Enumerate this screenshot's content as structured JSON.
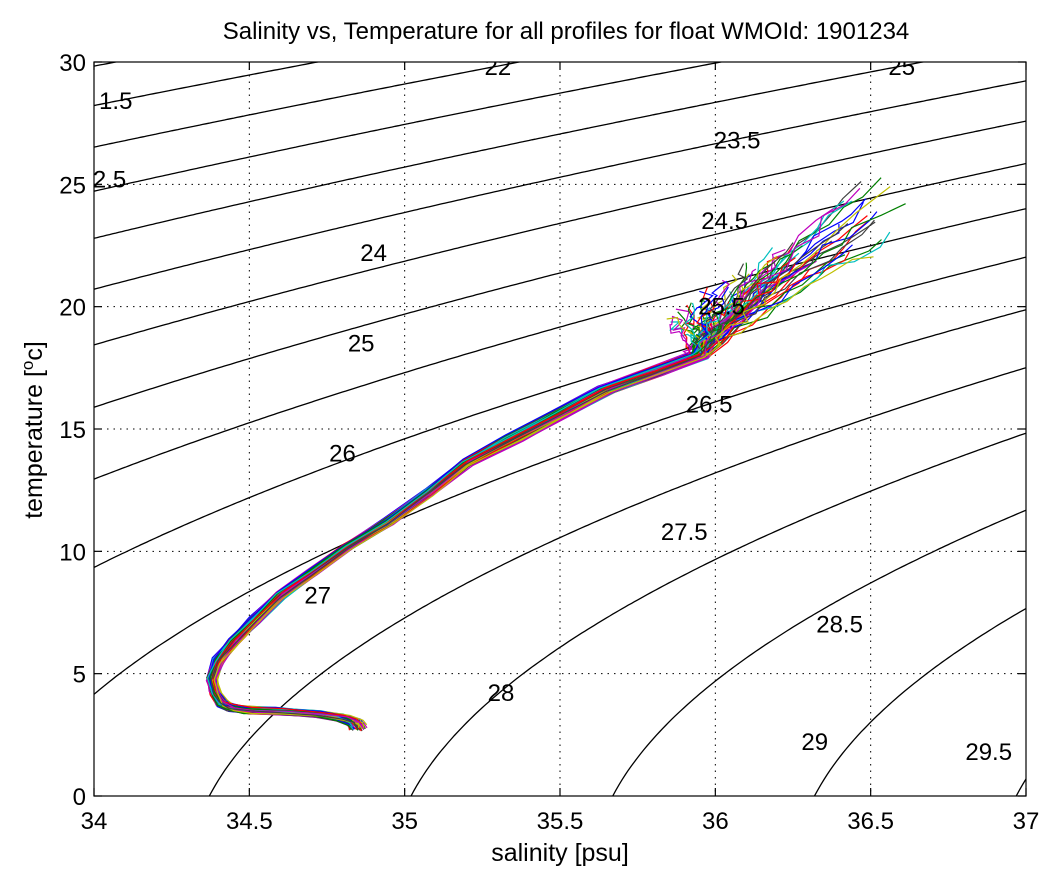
{
  "chart_data": {
    "type": "line",
    "title": "Salinity vs, Temperature for all profiles for float WMOId: 1901234",
    "xlabel": "salinity [psu]",
    "ylabel_parts": {
      "main": "temperature [",
      "sup": "o",
      "end": "c]"
    },
    "xlim": [
      34,
      37
    ],
    "ylim": [
      0,
      30
    ],
    "xticks": [
      34,
      34.5,
      35,
      35.5,
      36,
      36.5,
      37
    ],
    "xtick_labels": [
      "34",
      "34.5",
      "35",
      "35.5",
      "36",
      "36.5",
      "37"
    ],
    "yticks": [
      0,
      5,
      10,
      15,
      20,
      25,
      30
    ],
    "ytick_labels": [
      "0",
      "5",
      "10",
      "15",
      "20",
      "25",
      "30"
    ],
    "grid": true,
    "isopycnal_levels": [
      21.5,
      22,
      22.5,
      23,
      23.5,
      24,
      24.5,
      25,
      25.5,
      26,
      26.5,
      27,
      27.5,
      28,
      28.5,
      29,
      29.5
    ],
    "contour_labels": [
      {
        "text": "1.5",
        "s": 34.07,
        "t": 28.4
      },
      {
        "text": "2.5",
        "s": 34.05,
        "t": 25.2
      },
      {
        "text": "22",
        "s": 35.3,
        "t": 29.8
      },
      {
        "text": "23.5",
        "s": 36.07,
        "t": 26.8
      },
      {
        "text": "25",
        "s": 36.6,
        "t": 29.8
      },
      {
        "text": "24",
        "s": 34.9,
        "t": 22.2
      },
      {
        "text": "24.5",
        "s": 36.03,
        "t": 23.5
      },
      {
        "text": "25",
        "s": 34.86,
        "t": 18.5
      },
      {
        "text": "25.5",
        "s": 36.02,
        "t": 20.0
      },
      {
        "text": "26",
        "s": 34.8,
        "t": 14.0
      },
      {
        "text": "26.5",
        "s": 35.98,
        "t": 16.0
      },
      {
        "text": "27",
        "s": 34.72,
        "t": 8.2
      },
      {
        "text": "27.5",
        "s": 35.9,
        "t": 10.8
      },
      {
        "text": "28",
        "s": 35.31,
        "t": 4.2
      },
      {
        "text": "28.5",
        "s": 36.4,
        "t": 7.0
      },
      {
        "text": "29",
        "s": 36.32,
        "t": 2.2
      },
      {
        "text": "29.5",
        "s": 36.88,
        "t": 1.8
      }
    ],
    "profile_template": {
      "deep": [
        [
          34.85,
          2.8
        ],
        [
          34.84,
          3.0
        ],
        [
          34.8,
          3.2
        ],
        [
          34.72,
          3.35
        ],
        [
          34.6,
          3.45
        ],
        [
          34.5,
          3.5
        ],
        [
          34.44,
          3.6
        ],
        [
          34.41,
          3.8
        ],
        [
          34.39,
          4.2
        ],
        [
          34.38,
          4.8
        ],
        [
          34.4,
          5.5
        ],
        [
          34.45,
          6.3
        ],
        [
          34.52,
          7.2
        ],
        [
          34.6,
          8.2
        ],
        [
          34.7,
          9.1
        ],
        [
          34.82,
          10.2
        ],
        [
          34.95,
          11.2
        ],
        [
          35.08,
          12.4
        ],
        [
          35.2,
          13.6
        ],
        [
          35.35,
          14.6
        ],
        [
          35.5,
          15.6
        ],
        [
          35.65,
          16.6
        ],
        [
          35.8,
          17.3
        ],
        [
          35.95,
          18.0
        ]
      ],
      "upper_start": [
        35.95,
        18.0
      ],
      "upper_end_range": {
        "s": [
          35.85,
          36.6
        ],
        "t": [
          19.5,
          25.5
        ]
      }
    },
    "profile_count": 70,
    "series_colors": [
      "#0000ff",
      "#007f00",
      "#ff0000",
      "#00bfbf",
      "#bf00bf",
      "#bfbf00",
      "#404040"
    ]
  }
}
